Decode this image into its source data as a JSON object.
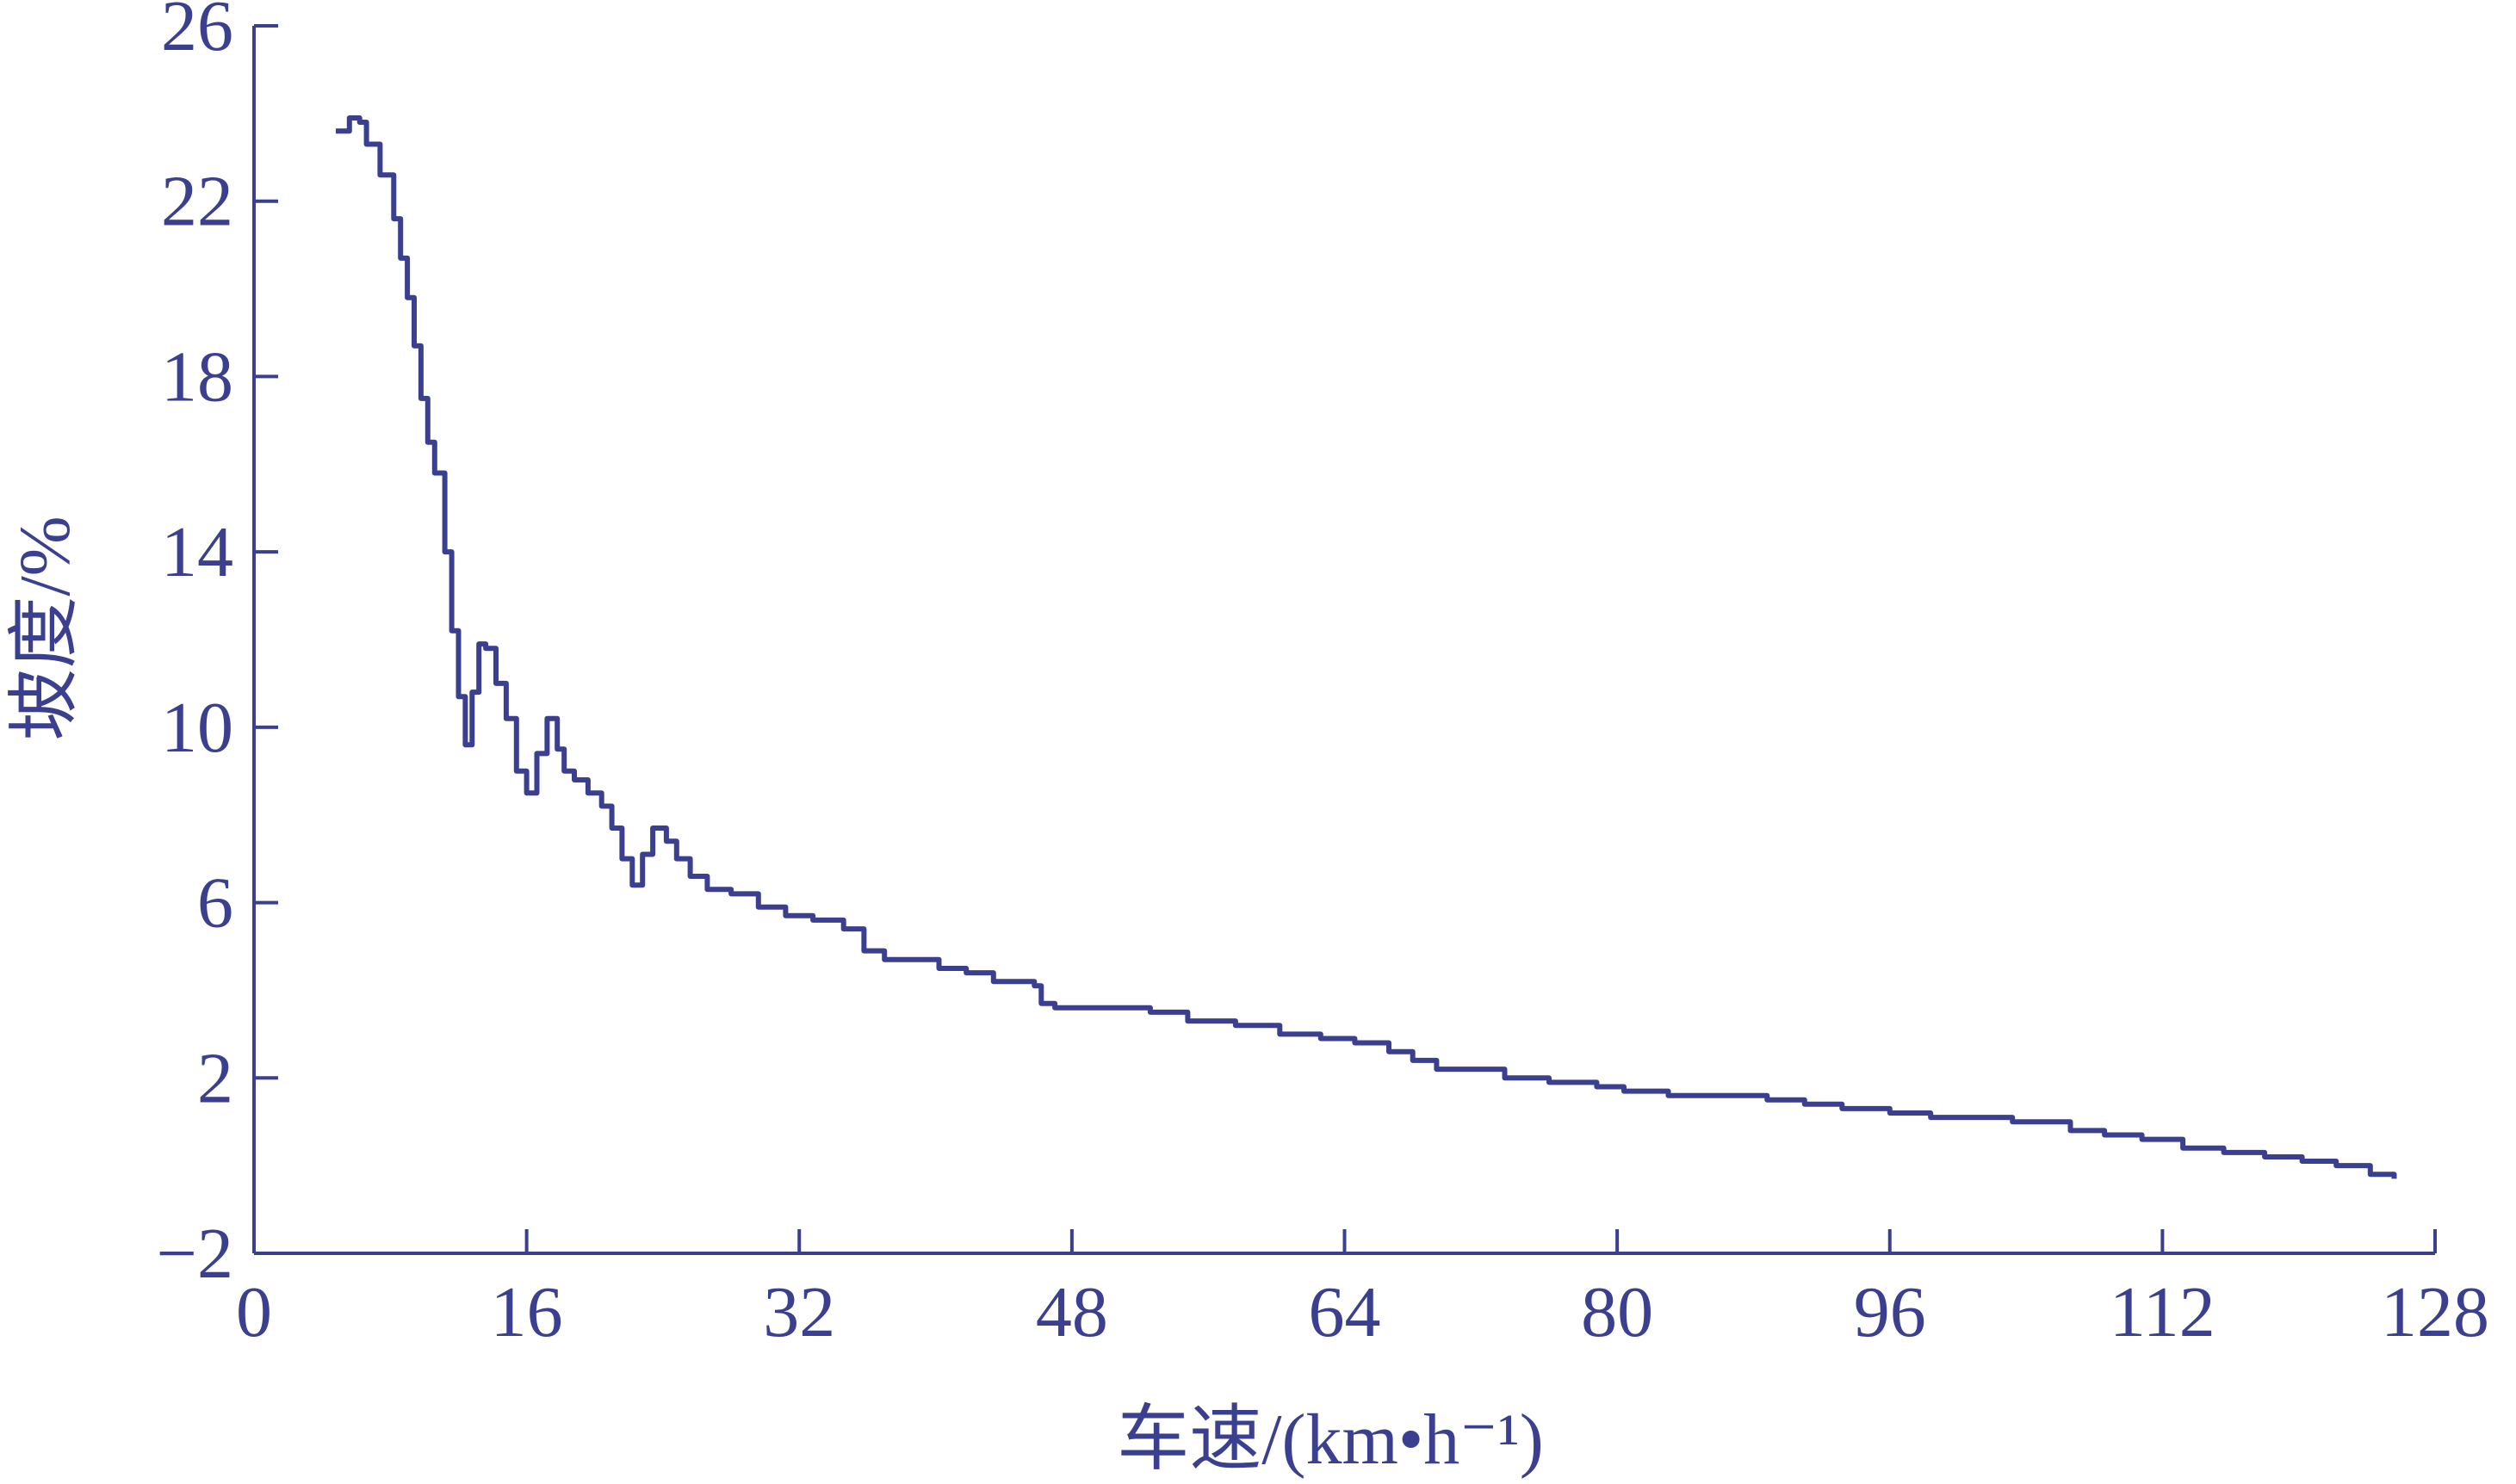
{
  "colors": {
    "ink": "#3a3f8f"
  },
  "chart_data": {
    "type": "line",
    "title": "",
    "xlabel": "车速/(km•h⁻¹)",
    "ylabel": "坡度/%",
    "xlim": [
      0,
      128
    ],
    "ylim": [
      -2,
      26
    ],
    "x_ticks": [
      0,
      16,
      32,
      48,
      64,
      80,
      96,
      112,
      128
    ],
    "y_ticks": [
      -2,
      2,
      6,
      10,
      14,
      18,
      22,
      26
    ],
    "x_tick_labels": [
      "0",
      "16",
      "32",
      "48",
      "64",
      "80",
      "96",
      "112",
      "128"
    ],
    "y_tick_labels": [
      "−2",
      "2",
      "6",
      "10",
      "14",
      "18",
      "22",
      "26"
    ],
    "grid": false,
    "legend": "none",
    "series": [
      {
        "x": [
          4.8,
          5.6,
          6.2,
          6.6,
          7.4,
          8.2,
          8.6,
          9.0,
          9.4,
          9.8,
          10.2,
          10.6,
          11.2,
          11.6,
          12.0,
          12.4,
          12.8,
          13.2,
          13.6,
          14.2,
          14.8,
          15.4,
          16.0,
          16.6,
          17.2,
          17.8,
          18.2,
          18.8,
          19.6,
          20.4,
          21.0,
          21.6,
          22.2,
          22.8,
          23.4,
          24.2,
          24.8,
          25.6,
          26.6,
          28.0,
          29.6,
          31.2,
          32.8,
          34.6,
          35.8,
          37.0,
          38.6,
          40.2,
          41.8,
          43.4,
          45.0,
          45.8,
          46.2,
          47.0,
          49.0,
          51.0,
          52.6,
          54.8,
          57.6,
          60.2,
          62.6,
          64.6,
          66.6,
          68.0,
          69.4,
          71.2,
          73.4,
          76.0,
          78.8,
          80.4,
          83.0,
          86.0,
          88.8,
          91.0,
          93.2,
          96.0,
          98.4,
          100.6,
          103.2,
          104.8,
          106.6,
          108.6,
          110.8,
          113.2,
          115.6,
          118.0,
          120.2,
          122.2,
          124.2,
          125.6
        ],
        "y": [
          23.6,
          23.9,
          23.8,
          23.3,
          22.6,
          21.6,
          20.7,
          19.8,
          18.7,
          17.5,
          16.5,
          15.8,
          14.0,
          12.2,
          10.7,
          9.6,
          10.8,
          11.9,
          11.8,
          11.0,
          10.2,
          9.0,
          8.5,
          9.4,
          10.2,
          9.5,
          9.0,
          8.8,
          8.5,
          8.2,
          7.7,
          7.0,
          6.4,
          7.1,
          7.7,
          7.4,
          7.0,
          6.6,
          6.3,
          6.2,
          5.9,
          5.7,
          5.6,
          5.4,
          4.9,
          4.7,
          4.7,
          4.5,
          4.4,
          4.2,
          4.2,
          4.1,
          3.7,
          3.6,
          3.6,
          3.6,
          3.5,
          3.3,
          3.2,
          3.0,
          2.9,
          2.8,
          2.6,
          2.4,
          2.2,
          2.2,
          2.0,
          1.9,
          1.8,
          1.7,
          1.6,
          1.6,
          1.5,
          1.4,
          1.3,
          1.2,
          1.1,
          1.1,
          1.0,
          1.0,
          0.8,
          0.7,
          0.6,
          0.4,
          0.3,
          0.2,
          0.1,
          0.0,
          -0.2,
          -0.3
        ]
      }
    ]
  }
}
